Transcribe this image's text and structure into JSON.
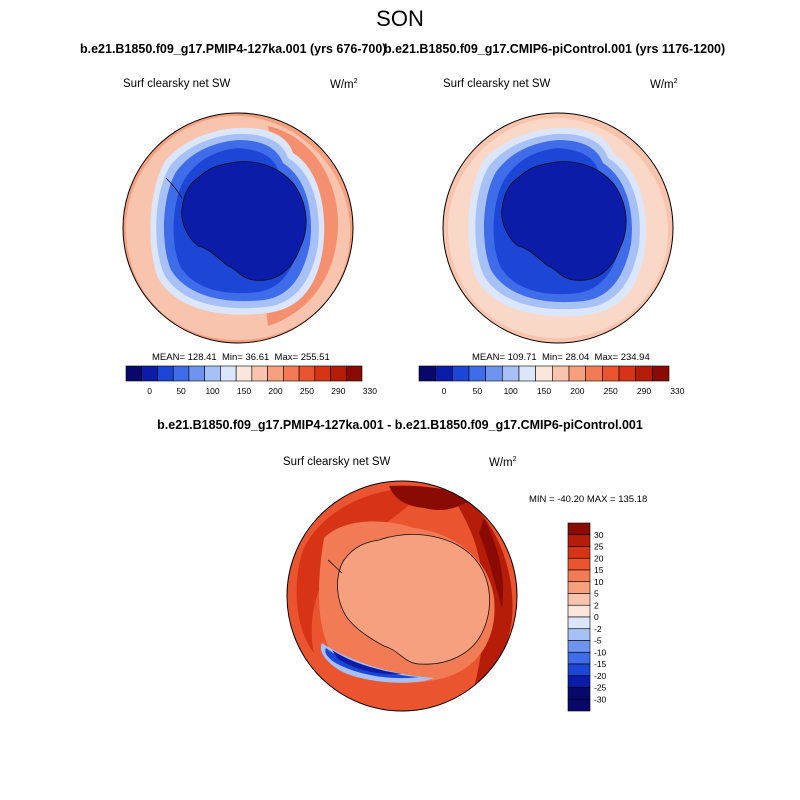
{
  "figure": {
    "title": "SON"
  },
  "panels": [
    {
      "title": "b.e21.B1850.f09_g17.PMIP4-127ka.001 (yrs 676-700)",
      "variable": "Surf clearsky net SW",
      "units": "W/m",
      "units_exp": "2",
      "mean_label": "MEAN=",
      "mean": "128.41",
      "min_label": "Min=",
      "min": "36.61",
      "max_label": "Max=",
      "max": "255.51"
    },
    {
      "title": "b.e21.B1850.f09_g17.CMIP6-piControl.001 (yrs 1176-1200)",
      "variable": "Surf clearsky net SW",
      "units": "W/m",
      "units_exp": "2",
      "mean_label": "MEAN=",
      "mean": "109.71",
      "min_label": "Min=",
      "min": "28.04",
      "max_label": "Max=",
      "max": "234.94"
    }
  ],
  "diff": {
    "title": "b.e21.B1850.f09_g17.PMIP4-127ka.001 - b.e21.B1850.f09_g17.CMIP6-piControl.001",
    "variable": "Surf clearsky net SW",
    "units": "W/m",
    "units_exp": "2",
    "minmax": "MIN = -40.20 MAX = 135.18"
  },
  "colorbar_top": {
    "labels": [
      "0",
      "50",
      "100",
      "150",
      "200",
      "250",
      "290",
      "330"
    ],
    "colors": [
      "#08086b",
      "#0a1ca8",
      "#1c46d6",
      "#3f6ce8",
      "#6f94f0",
      "#a7c0f5",
      "#dce6fa",
      "#fbe6db",
      "#f8c4ad",
      "#f6a07f",
      "#f27b55",
      "#ea542e",
      "#d63415",
      "#b51d08",
      "#8a0b04"
    ]
  },
  "colorbar_diff": {
    "labels": [
      "30",
      "25",
      "20",
      "15",
      "10",
      "5",
      "2",
      "0",
      "-2",
      "-5",
      "-10",
      "-15",
      "-20",
      "-25",
      "-30"
    ],
    "colors": [
      "#8a0b04",
      "#b51d08",
      "#d63415",
      "#ea542e",
      "#f27b55",
      "#f6a07f",
      "#f8c4ad",
      "#fbe6db",
      "#dce6fa",
      "#a7c0f5",
      "#6f94f0",
      "#3f6ce8",
      "#1c46d6",
      "#0a1ca8",
      "#08086b",
      "#08086b"
    ]
  }
}
